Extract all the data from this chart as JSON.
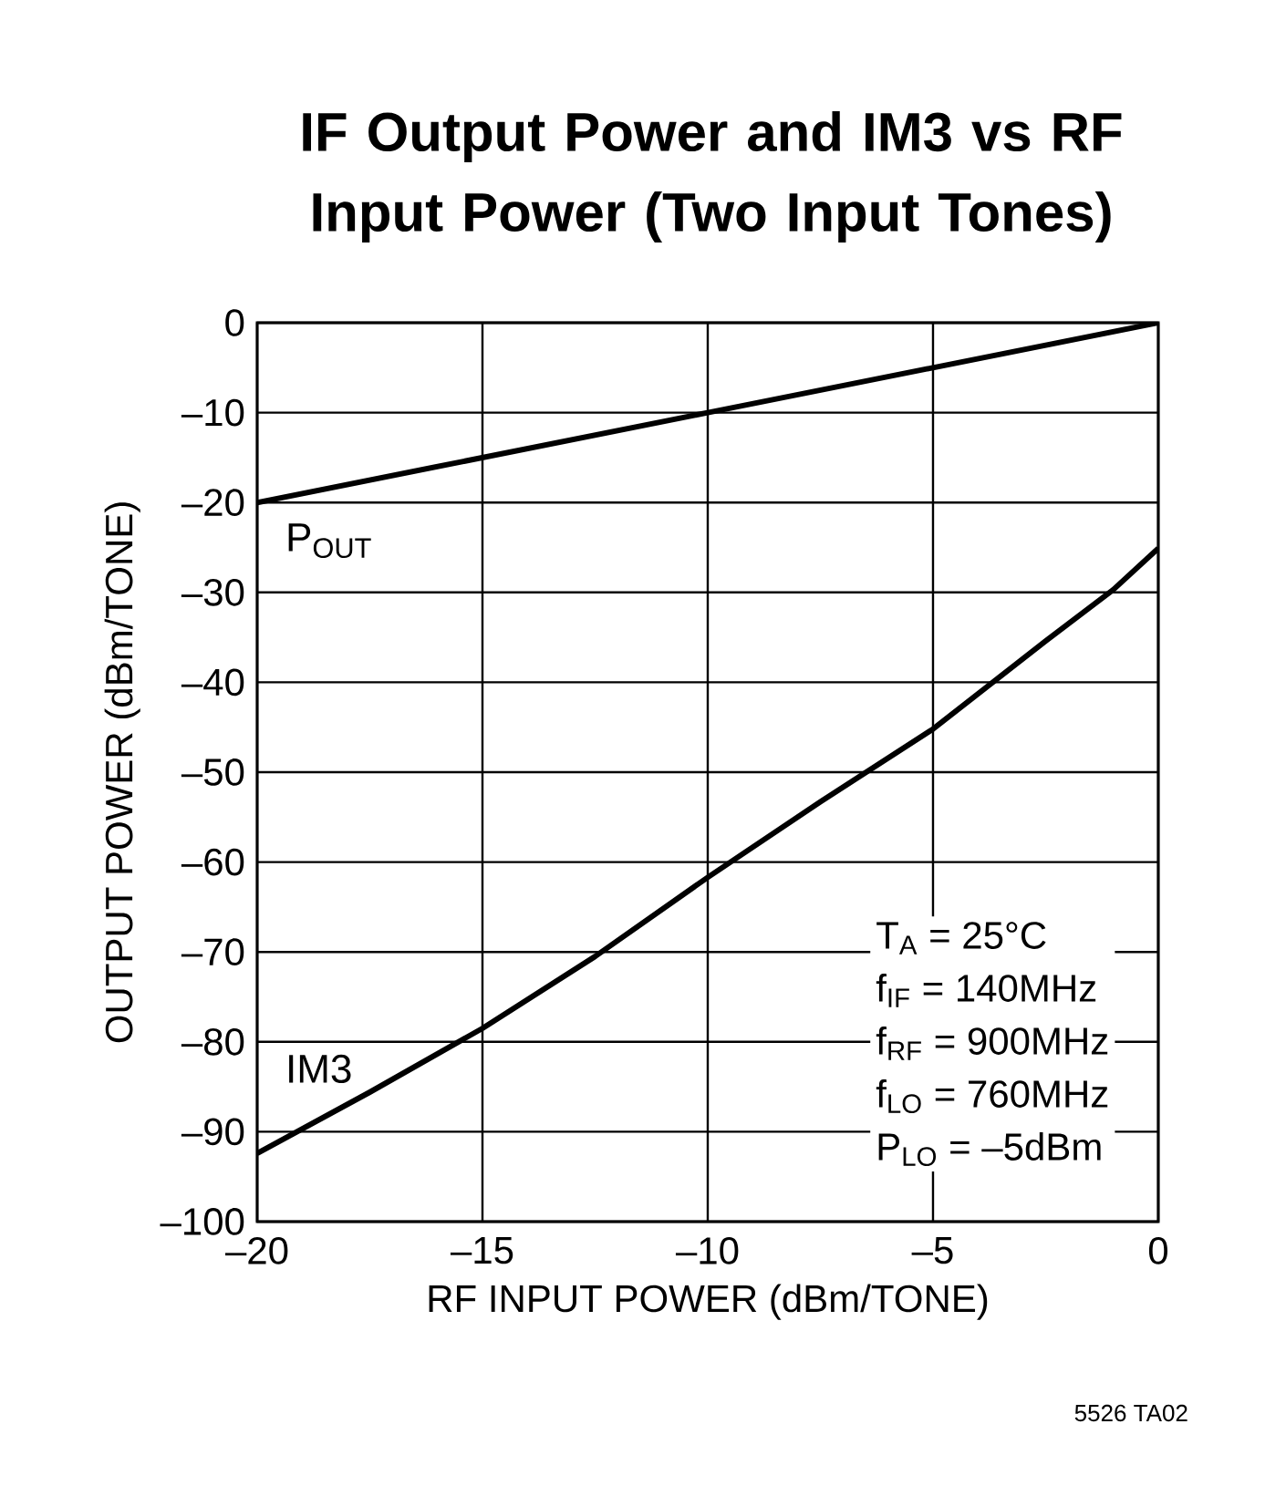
{
  "chart_data": {
    "type": "line",
    "title": "IF Output Power and IM3 vs RF Input Power (Two Input Tones)",
    "xlabel": "RF INPUT POWER (dBm/TONE)",
    "ylabel": "OUTPUT POWER (dBm/TONE)",
    "x": [
      -20,
      -17.5,
      -15,
      -12.5,
      -10,
      -7.5,
      -5,
      -2.5,
      -1,
      0
    ],
    "series": [
      {
        "name": "P$_{OUT}$",
        "color": "#000000",
        "x": [
          -20,
          -10,
          0
        ],
        "values": [
          -20,
          -10,
          0
        ]
      },
      {
        "name": "IM3",
        "color": "#000000",
        "values": [
          -92.4,
          -85.6,
          -78.5,
          -70.5,
          -61.7,
          -53.3,
          -45.2,
          -35.4,
          -29.7,
          -25.1
        ]
      }
    ],
    "xlim": [
      -20,
      0
    ],
    "ylim": [
      -100,
      0
    ],
    "xticks": [
      {
        "value": -20,
        "label": "–20"
      },
      {
        "value": -15,
        "label": "–15"
      },
      {
        "value": -10,
        "label": "–10"
      },
      {
        "value": -5,
        "label": "–5"
      },
      0
    ],
    "yticks": [
      {
        "value": -100,
        "label": "–100"
      },
      {
        "value": -90,
        "label": "–90"
      },
      {
        "value": -80,
        "label": "–80"
      },
      {
        "value": -70,
        "label": "–70"
      },
      {
        "value": -60,
        "label": "–60"
      },
      {
        "value": -50,
        "label": "–50"
      },
      {
        "value": -40,
        "label": "–40"
      },
      {
        "value": -30,
        "label": "–30"
      },
      {
        "value": -20,
        "label": "–20"
      },
      {
        "value": -10,
        "label": "–10"
      },
      0
    ],
    "grid": true,
    "marker": "none",
    "line_style": "solid",
    "annotations": [
      "T$_{A}$ = 25°C",
      "f$_{IF}$ = 140MHz",
      "f$_{RF}$ = 900MHz",
      "f$_{LO}$ = 760MHz",
      "P$_{LO}$ = –5dBm",
      "5526 TA02"
    ]
  }
}
